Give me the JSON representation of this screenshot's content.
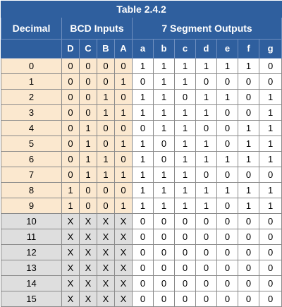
{
  "title": "Table 2.4.2",
  "headers": {
    "decimal": "Decimal",
    "bcd_inputs": "BCD Inputs",
    "segment_outputs": "7 Segment Outputs"
  },
  "input_columns": [
    "D",
    "C",
    "B",
    "A"
  ],
  "output_columns": [
    "a",
    "b",
    "c",
    "d",
    "e",
    "f",
    "g"
  ],
  "colors": {
    "header_blue": "#2f5f9e",
    "valid_rows_tint": "#fbe8cf",
    "invalid_rows_tint": "#dedede"
  },
  "rows": [
    {
      "decimal": "0",
      "inputs": [
        "0",
        "0",
        "0",
        "0"
      ],
      "outputs": [
        "1",
        "1",
        "1",
        "1",
        "1",
        "1",
        "0"
      ]
    },
    {
      "decimal": "1",
      "inputs": [
        "0",
        "0",
        "0",
        "1"
      ],
      "outputs": [
        "0",
        "1",
        "1",
        "0",
        "0",
        "0",
        "0"
      ]
    },
    {
      "decimal": "2",
      "inputs": [
        "0",
        "0",
        "1",
        "0"
      ],
      "outputs": [
        "1",
        "1",
        "0",
        "1",
        "1",
        "0",
        "1"
      ]
    },
    {
      "decimal": "3",
      "inputs": [
        "0",
        "0",
        "1",
        "1"
      ],
      "outputs": [
        "1",
        "1",
        "1",
        "1",
        "0",
        "0",
        "1"
      ]
    },
    {
      "decimal": "4",
      "inputs": [
        "0",
        "1",
        "0",
        "0"
      ],
      "outputs": [
        "0",
        "1",
        "1",
        "0",
        "0",
        "1",
        "1"
      ]
    },
    {
      "decimal": "5",
      "inputs": [
        "0",
        "1",
        "0",
        "1"
      ],
      "outputs": [
        "1",
        "0",
        "1",
        "1",
        "0",
        "1",
        "1"
      ]
    },
    {
      "decimal": "6",
      "inputs": [
        "0",
        "1",
        "1",
        "0"
      ],
      "outputs": [
        "1",
        "0",
        "1",
        "1",
        "1",
        "1",
        "1"
      ]
    },
    {
      "decimal": "7",
      "inputs": [
        "0",
        "1",
        "1",
        "1"
      ],
      "outputs": [
        "1",
        "1",
        "1",
        "0",
        "0",
        "0",
        "0"
      ]
    },
    {
      "decimal": "8",
      "inputs": [
        "1",
        "0",
        "0",
        "0"
      ],
      "outputs": [
        "1",
        "1",
        "1",
        "1",
        "1",
        "1",
        "1"
      ]
    },
    {
      "decimal": "9",
      "inputs": [
        "1",
        "0",
        "0",
        "1"
      ],
      "outputs": [
        "1",
        "1",
        "1",
        "1",
        "0",
        "1",
        "1"
      ]
    },
    {
      "decimal": "10",
      "inputs": [
        "X",
        "X",
        "X",
        "X"
      ],
      "outputs": [
        "0",
        "0",
        "0",
        "0",
        "0",
        "0",
        "0"
      ]
    },
    {
      "decimal": "11",
      "inputs": [
        "X",
        "X",
        "X",
        "X"
      ],
      "outputs": [
        "0",
        "0",
        "0",
        "0",
        "0",
        "0",
        "0"
      ]
    },
    {
      "decimal": "12",
      "inputs": [
        "X",
        "X",
        "X",
        "X"
      ],
      "outputs": [
        "0",
        "0",
        "0",
        "0",
        "0",
        "0",
        "0"
      ]
    },
    {
      "decimal": "13",
      "inputs": [
        "X",
        "X",
        "X",
        "X"
      ],
      "outputs": [
        "0",
        "0",
        "0",
        "0",
        "0",
        "0",
        "0"
      ]
    },
    {
      "decimal": "14",
      "inputs": [
        "X",
        "X",
        "X",
        "X"
      ],
      "outputs": [
        "0",
        "0",
        "0",
        "0",
        "0",
        "0",
        "0"
      ]
    },
    {
      "decimal": "15",
      "inputs": [
        "X",
        "X",
        "X",
        "X"
      ],
      "outputs": [
        "0",
        "0",
        "0",
        "0",
        "0",
        "0",
        "0"
      ]
    }
  ]
}
